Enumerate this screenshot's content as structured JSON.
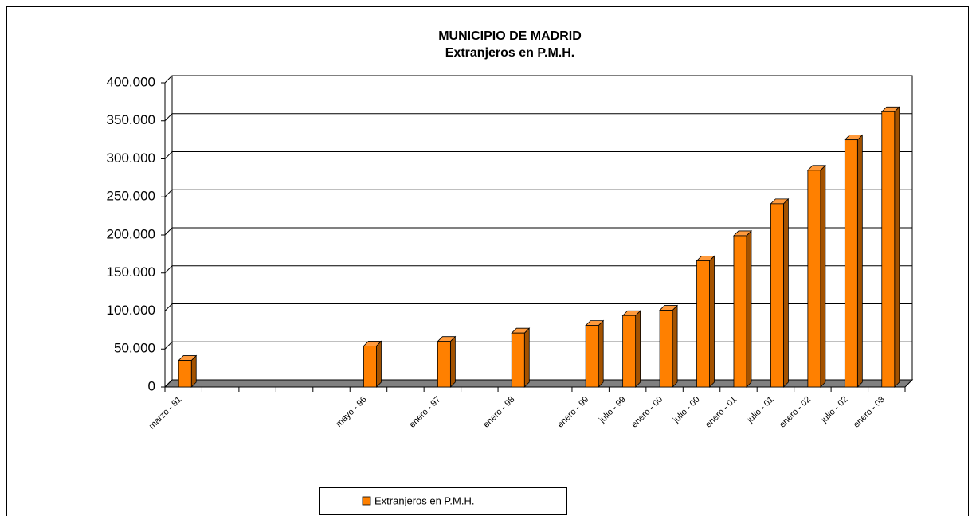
{
  "chart_data": {
    "type": "bar3d",
    "title": "MUNICIPIO DE MADRID",
    "subtitle": "Extranjeros en P.M.H.",
    "categories": [
      "marzo - 91",
      null,
      null,
      null,
      null,
      "mayo - 96",
      null,
      "enero - 97",
      null,
      "enero - 98",
      null,
      "enero - 99",
      "julio - 99",
      "enero - 00",
      "julio - 00",
      "enero - 01",
      "julio - 01",
      "enero - 02",
      "julio - 02",
      "enero - 03"
    ],
    "series": [
      {
        "name": "Extranjeros en P.M.H.",
        "color": "#ff8000",
        "values": [
          35000,
          null,
          null,
          null,
          null,
          54000,
          null,
          60000,
          null,
          71000,
          null,
          81000,
          94000,
          101000,
          166000,
          199000,
          241000,
          285000,
          325000,
          362000
        ]
      }
    ],
    "ylim": [
      0,
      400000
    ],
    "yticks": [
      0,
      {
        "value": 50000,
        "label": "50.000"
      },
      {
        "value": 100000,
        "label": "100.000"
      },
      {
        "value": 150000,
        "label": "150.000"
      },
      {
        "value": 200000,
        "label": "200.000"
      },
      {
        "value": 250000,
        "label": "250.000"
      },
      {
        "value": 300000,
        "label": "300.000"
      },
      {
        "value": 350000,
        "label": "350.000"
      },
      {
        "value": 400000,
        "label": "400.000"
      }
    ],
    "grid": true,
    "legend": "bottom"
  }
}
